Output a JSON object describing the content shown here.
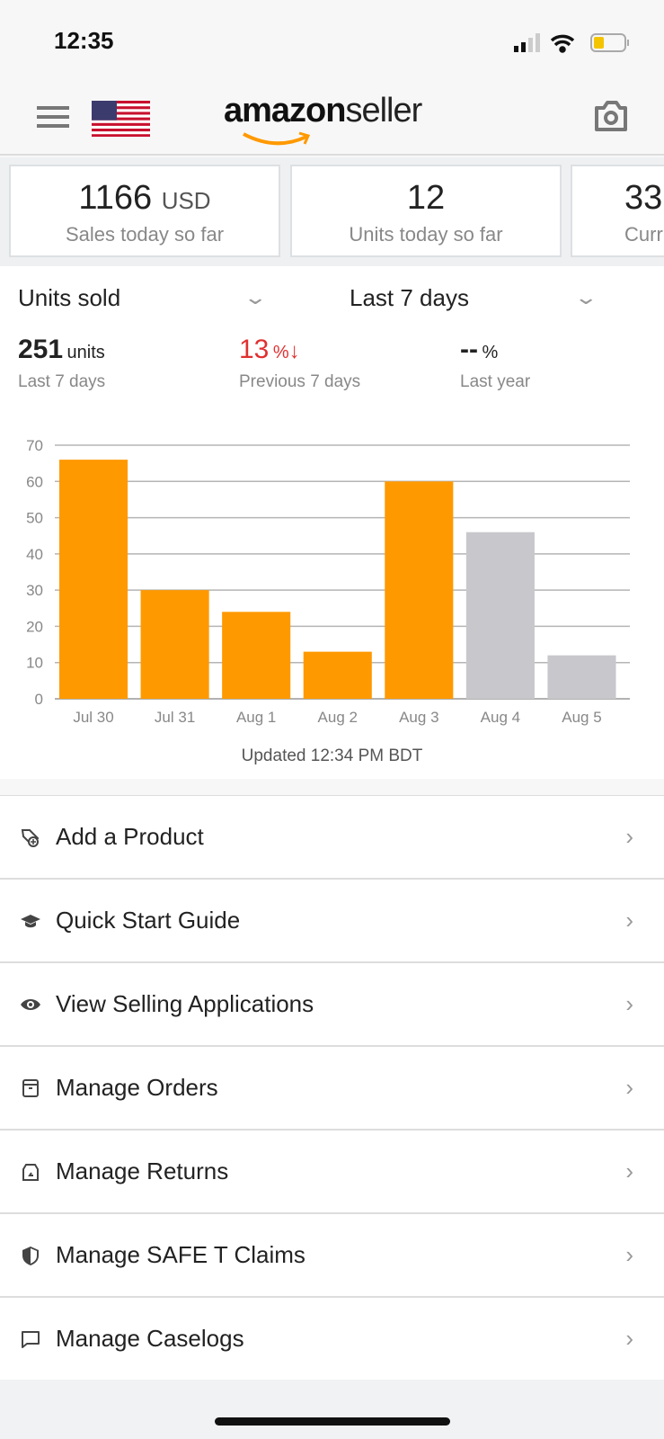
{
  "status_bar": {
    "time": "12:35",
    "battery_color": "#f5c400"
  },
  "header": {
    "logo_text_bold": "amazon",
    "logo_text_light": "seller",
    "flag": "us-flag",
    "menu_icon": "hamburger-icon",
    "camera_icon": "camera-icon"
  },
  "cards": [
    {
      "value": "1166",
      "unit": "USD",
      "label": "Sales today so far"
    },
    {
      "value": "12",
      "unit": "",
      "label": "Units today so far"
    },
    {
      "value": "33",
      "unit": "",
      "label": "Curr"
    }
  ],
  "filters": {
    "metric": "Units sold",
    "range": "Last 7 days"
  },
  "stats": {
    "total": {
      "value": "251",
      "unit": "units",
      "label": "Last 7 days"
    },
    "previous": {
      "value": "13",
      "unit": "%",
      "label": "Previous 7 days",
      "color": "#e03030"
    },
    "last_year": {
      "value": "--",
      "unit": "%",
      "label": "Last year"
    }
  },
  "chart_data": {
    "type": "bar",
    "categories": [
      "Jul 30",
      "Jul 31",
      "Aug 1",
      "Aug 2",
      "Aug 3",
      "Aug 4",
      "Aug 5"
    ],
    "values": [
      66,
      30,
      24,
      13,
      60,
      46,
      12
    ],
    "colors": [
      "#ff9900",
      "#ff9900",
      "#ff9900",
      "#ff9900",
      "#ff9900",
      "#c8c8cc",
      "#c8c8cc"
    ],
    "yticks": [
      0,
      10,
      20,
      30,
      40,
      50,
      60,
      70
    ],
    "ylim": [
      0,
      70
    ],
    "grid": true,
    "title": "",
    "xlabel": "",
    "ylabel": ""
  },
  "updated": "Updated 12:34 PM BDT",
  "menu": [
    {
      "label": "Add a Product",
      "icon": "tag-add-icon"
    },
    {
      "label": "Quick Start Guide",
      "icon": "graduation-cap-icon"
    },
    {
      "label": "View Selling Applications",
      "icon": "eye-icon"
    },
    {
      "label": "Manage Orders",
      "icon": "box-icon"
    },
    {
      "label": "Manage Returns",
      "icon": "return-icon"
    },
    {
      "label": "Manage SAFE T Claims",
      "icon": "shield-icon"
    },
    {
      "label": "Manage Caselogs",
      "icon": "chat-icon"
    }
  ]
}
